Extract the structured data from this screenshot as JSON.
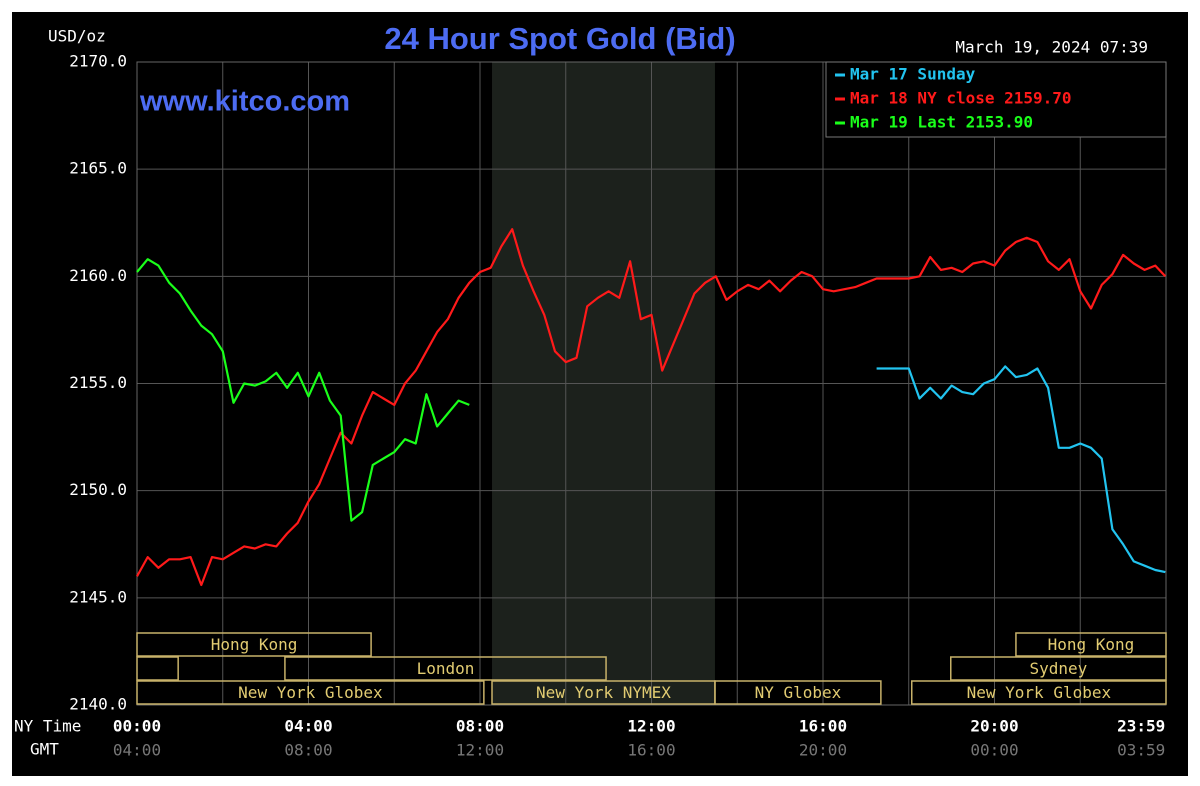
{
  "chart_data": {
    "type": "line",
    "title": "24 Hour Spot Gold (Bid)",
    "y_label": "USD/oz",
    "date_label": "March 19, 2024 07:39",
    "watermark": "www.kitco.com",
    "x_label": "NY Time",
    "x2_label": "GMT",
    "xlim": [
      0,
      24
    ],
    "ylim": [
      2140,
      2170
    ],
    "yticks": [
      {
        "value": 2140,
        "label": "2140.0"
      },
      {
        "value": 2145,
        "label": "2145.0"
      },
      {
        "value": 2150,
        "label": "2150.0"
      },
      {
        "value": 2155,
        "label": "2155.0"
      },
      {
        "value": 2160,
        "label": "2160.0"
      },
      {
        "value": 2165,
        "label": "2165.0"
      },
      {
        "value": 2170,
        "label": "2170.0"
      }
    ],
    "xticks": [
      {
        "value": 0,
        "label": "00:00"
      },
      {
        "value": 4,
        "label": "04:00"
      },
      {
        "value": 8,
        "label": "08:00"
      },
      {
        "value": 12,
        "label": "12:00"
      },
      {
        "value": 16,
        "label": "16:00"
      },
      {
        "value": 20,
        "label": "20:00"
      },
      {
        "value": 23.983,
        "label": "23:59"
      }
    ],
    "gmt_labels": [
      "04:00",
      "08:00",
      "12:00",
      "16:00",
      "20:00",
      "00:00",
      "03:59"
    ],
    "xgrid": [
      0,
      2,
      4,
      6,
      8,
      10,
      12,
      14,
      16,
      18,
      20,
      22
    ],
    "grid": true,
    "legend": "upper right",
    "series": [
      {
        "name": "Mar 17 Sunday",
        "color": "#22c4f0",
        "x": [
          17.25,
          17.5,
          17.75,
          18,
          18.25,
          18.5,
          18.75,
          19,
          19.25,
          19.5,
          19.75,
          20,
          20.25,
          20.5,
          20.75,
          21,
          21.25,
          21.5,
          21.75,
          22,
          22.25,
          22.5,
          22.75,
          23,
          23.25,
          23.5,
          23.75,
          23.983
        ],
        "values": [
          2155.7,
          2155.7,
          2155.7,
          2155.7,
          2154.3,
          2154.8,
          2154.3,
          2154.9,
          2154.6,
          2154.5,
          2155.0,
          2155.2,
          2155.8,
          2155.3,
          2155.4,
          2155.7,
          2154.8,
          2152.0,
          2152.0,
          2152.2,
          2152.0,
          2151.5,
          2148.2,
          2147.5,
          2146.7,
          2146.5,
          2146.3,
          2146.2
        ]
      },
      {
        "name": "Mar 18 NY close 2159.70",
        "color": "#ff1a1a",
        "x": [
          0,
          0.25,
          0.5,
          0.75,
          1,
          1.25,
          1.5,
          1.75,
          2,
          2.25,
          2.5,
          2.75,
          3,
          3.25,
          3.5,
          3.75,
          4,
          4.25,
          4.5,
          4.75,
          5,
          5.25,
          5.5,
          5.75,
          6,
          6.25,
          6.5,
          6.75,
          7,
          7.25,
          7.5,
          7.75,
          8,
          8.25,
          8.5,
          8.75,
          9,
          9.25,
          9.5,
          9.75,
          10,
          10.25,
          10.5,
          10.75,
          11,
          11.25,
          11.5,
          11.75,
          12,
          12.25,
          12.5,
          12.75,
          13,
          13.25,
          13.5,
          13.75,
          14,
          14.25,
          14.5,
          14.75,
          15,
          15.25,
          15.5,
          15.75,
          16,
          16.25,
          16.5,
          16.75,
          17,
          17.25,
          17.5,
          17.75,
          18,
          18.25,
          18.5,
          18.75,
          19,
          19.25,
          19.5,
          19.75,
          20,
          20.25,
          20.5,
          20.75,
          21,
          21.25,
          21.5,
          21.75,
          22,
          22.25,
          22.5,
          22.75,
          23,
          23.25,
          23.5,
          23.75,
          23.983
        ],
        "values": [
          2146.0,
          2146.9,
          2146.4,
          2146.8,
          2146.8,
          2146.9,
          2145.6,
          2146.9,
          2146.8,
          2147.1,
          2147.4,
          2147.3,
          2147.5,
          2147.4,
          2148.0,
          2148.5,
          2149.5,
          2150.3,
          2151.5,
          2152.7,
          2152.2,
          2153.5,
          2154.6,
          2154.3,
          2154.0,
          2155.0,
          2155.6,
          2156.5,
          2157.4,
          2158.0,
          2159.0,
          2159.7,
          2160.2,
          2160.4,
          2161.4,
          2162.2,
          2160.5,
          2159.3,
          2158.2,
          2156.5,
          2156.0,
          2156.2,
          2158.6,
          2159.0,
          2159.3,
          2159.0,
          2160.7,
          2158.0,
          2158.2,
          2155.6,
          2156.8,
          2158.0,
          2159.2,
          2159.7,
          2160.0,
          2158.9,
          2159.3,
          2159.6,
          2159.4,
          2159.8,
          2159.3,
          2159.8,
          2160.2,
          2160.0,
          2159.4,
          2159.3,
          2159.4,
          2159.5,
          2159.7,
          2159.9,
          2159.9,
          2159.9,
          2159.9,
          2160.0,
          2160.9,
          2160.3,
          2160.4,
          2160.2,
          2160.6,
          2160.7,
          2160.5,
          2161.2,
          2161.6,
          2161.8,
          2161.6,
          2160.7,
          2160.3,
          2160.8,
          2159.3,
          2158.5,
          2159.6,
          2160.1,
          2161.0,
          2160.6,
          2160.3,
          2160.5,
          2160.0
        ]
      },
      {
        "name": "Mar 19 Last 2153.90",
        "color": "#1aff1a",
        "x": [
          0,
          0.25,
          0.5,
          0.75,
          1,
          1.25,
          1.5,
          1.75,
          2,
          2.25,
          2.5,
          2.75,
          3,
          3.25,
          3.5,
          3.75,
          4,
          4.25,
          4.5,
          4.75,
          5,
          5.25,
          5.5,
          5.75,
          6,
          6.25,
          6.5,
          6.75,
          7,
          7.25,
          7.5,
          7.75
        ],
        "values": [
          2160.2,
          2160.8,
          2160.5,
          2159.7,
          2159.2,
          2158.4,
          2157.7,
          2157.3,
          2156.5,
          2154.1,
          2155.0,
          2154.9,
          2155.1,
          2155.5,
          2154.8,
          2155.5,
          2154.4,
          2155.5,
          2154.2,
          2153.5,
          2148.6,
          2149.0,
          2151.2,
          2151.5,
          2151.8,
          2152.4,
          2152.2,
          2154.5,
          2153.0,
          2153.6,
          2154.2,
          2154.0
        ]
      }
    ],
    "sessions": [
      {
        "label": "Hong Kong",
        "start": 0,
        "end": 5.46,
        "row": 0
      },
      {
        "label": "Hong Kong",
        "start": 20.5,
        "end": 24,
        "row": 0
      },
      {
        "start": 0,
        "end": 0.96,
        "row": 1
      },
      {
        "label": "London",
        "start": 3.45,
        "end": 10.94,
        "row": 1
      },
      {
        "label": "Sydney",
        "start": 18.98,
        "end": 24,
        "row": 1
      },
      {
        "label": "New York Globex",
        "start": 0,
        "end": 8.09,
        "row": 2
      },
      {
        "label": "New York NYMEX",
        "start": 8.28,
        "end": 13.48,
        "row": 2,
        "shaded": true
      },
      {
        "label": "NY Globex",
        "start": 13.48,
        "end": 17.35,
        "row": 2
      },
      {
        "label": "New York Globex",
        "start": 18.07,
        "end": 24,
        "row": 2
      }
    ]
  }
}
